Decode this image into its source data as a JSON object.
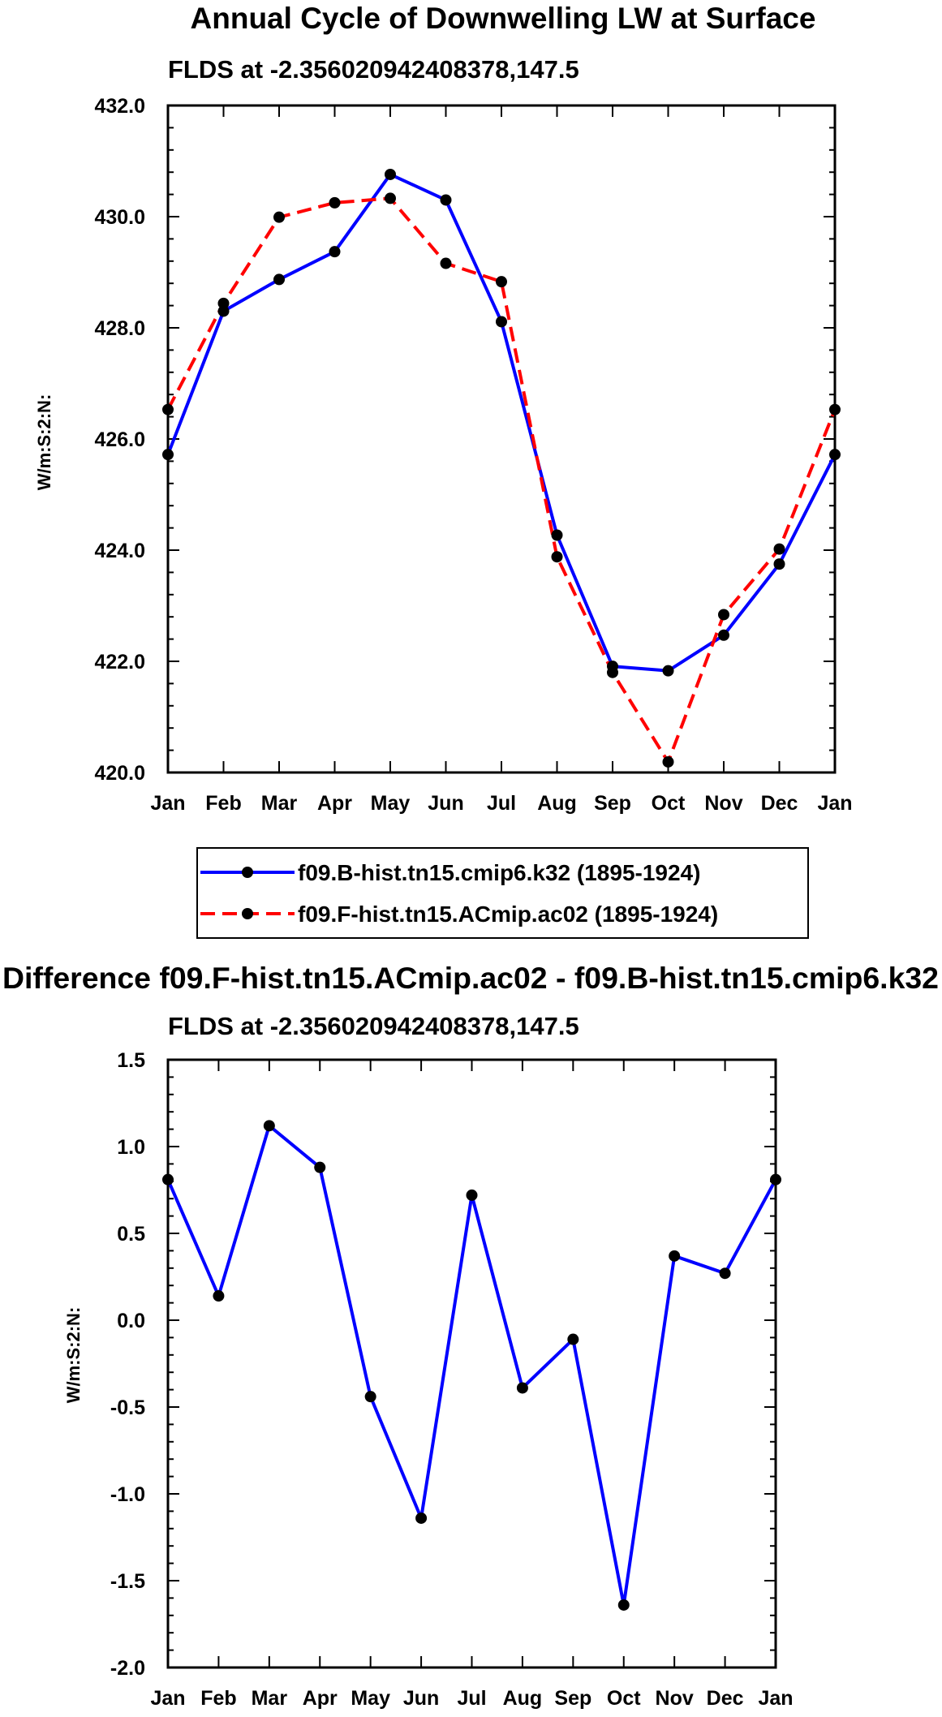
{
  "chart_data": [
    {
      "type": "line",
      "title": "Annual Cycle of Downwelling LW at Surface",
      "subtitle": "FLDS at -2.356020942408378,147.5",
      "xlabel": "",
      "ylabel": "W/m:S:2:N:",
      "categories": [
        "Jan",
        "Feb",
        "Mar",
        "Apr",
        "May",
        "Jun",
        "Jul",
        "Aug",
        "Sep",
        "Oct",
        "Nov",
        "Dec",
        "Jan"
      ],
      "ylim": [
        420.0,
        432.0
      ],
      "yticks": [
        420.0,
        422.0,
        424.0,
        426.0,
        428.0,
        430.0,
        432.0
      ],
      "ytick_labels": [
        "420.0",
        "422.0",
        "424.0",
        "426.0",
        "428.0",
        "430.0",
        "432.0"
      ],
      "series": [
        {
          "name": "f09.B-hist.tn15.cmip6.k32 (1895-1924)",
          "color": "#0000ff",
          "style": "solid",
          "values": [
            425.72,
            428.3,
            428.87,
            429.37,
            430.76,
            430.3,
            428.11,
            424.27,
            421.91,
            421.83,
            422.47,
            423.75,
            425.72
          ]
        },
        {
          "name": "f09.F-hist.tn15.ACmip.ac02 (1895-1924)",
          "color": "#ff0000",
          "style": "dashed",
          "values": [
            426.53,
            428.44,
            429.99,
            430.25,
            430.33,
            429.16,
            428.83,
            423.88,
            421.8,
            420.19,
            422.84,
            424.02,
            426.53
          ]
        }
      ]
    },
    {
      "type": "line",
      "title": "Difference f09.F-hist.tn15.ACmip.ac02 - f09.B-hist.tn15.cmip6.k32",
      "subtitle": "FLDS at -2.356020942408378,147.5",
      "xlabel": "",
      "ylabel": "W/m:S:2:N:",
      "categories": [
        "Jan",
        "Feb",
        "Mar",
        "Apr",
        "May",
        "Jun",
        "Jul",
        "Aug",
        "Sep",
        "Oct",
        "Nov",
        "Dec",
        "Jan"
      ],
      "ylim": [
        -2.0,
        1.5
      ],
      "yticks": [
        -2.0,
        -1.5,
        -1.0,
        -0.5,
        0.0,
        0.5,
        1.0,
        1.5
      ],
      "ytick_labels": [
        "-2.0",
        "-1.5",
        "-1.0",
        "-0.5",
        "0.0",
        "0.5",
        "1.0",
        "1.5"
      ],
      "series": [
        {
          "name": "difference",
          "color": "#0000ff",
          "style": "solid",
          "values": [
            0.81,
            0.14,
            1.12,
            0.88,
            -0.44,
            -1.14,
            0.72,
            -0.39,
            -0.11,
            -1.64,
            0.37,
            0.27,
            0.81
          ]
        }
      ]
    }
  ]
}
